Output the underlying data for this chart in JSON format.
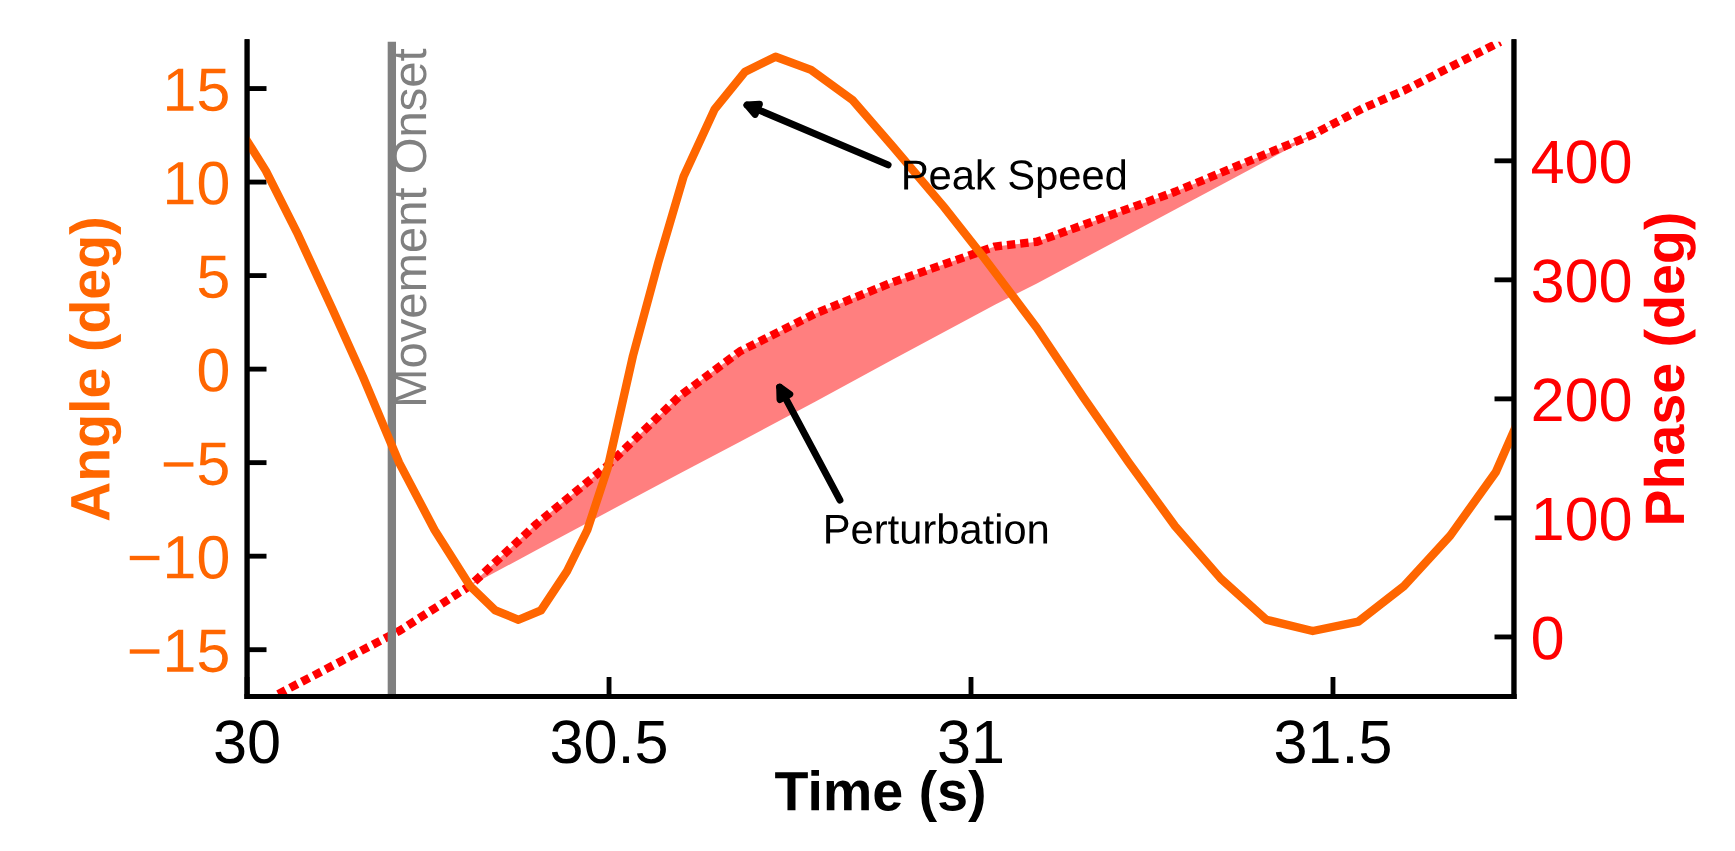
{
  "chart_data": {
    "type": "line",
    "xlabel": "Time (s)",
    "ylabel": "Angle (deg)",
    "y2label": "Phase (deg)",
    "xlim": [
      30,
      31.75
    ],
    "xticks": [
      30,
      30.5,
      31,
      31.5
    ],
    "ylim": [
      -17.5,
      17.5
    ],
    "yticks": [
      -15,
      -10,
      -5,
      0,
      5,
      10,
      15
    ],
    "y2lim": [
      -50,
      500
    ],
    "y2ticks": [
      0,
      100,
      200,
      300,
      400
    ],
    "grid": false,
    "legend": false,
    "series": [
      {
        "color": "#ff6600",
        "line_style": "solid",
        "x": [
          30.0,
          30.026,
          30.069,
          30.118,
          30.16,
          30.21,
          30.259,
          30.308,
          30.343,
          30.375,
          30.406,
          30.442,
          30.47,
          30.498,
          30.533,
          30.568,
          30.603,
          30.646,
          30.688,
          30.73,
          30.779,
          30.836,
          30.892,
          30.962,
          31.015,
          31.091,
          31.155,
          31.218,
          31.282,
          31.345,
          31.408,
          31.472,
          31.535,
          31.598,
          31.662,
          31.725,
          31.75
        ],
        "values": [
          12.2,
          10.6,
          7.3,
          3.2,
          -0.4,
          -5.0,
          -8.6,
          -11.6,
          -12.9,
          -13.4,
          -12.9,
          -10.8,
          -8.6,
          -5.3,
          0.7,
          5.7,
          10.3,
          13.9,
          15.9,
          16.7,
          16.0,
          14.4,
          11.9,
          8.7,
          6.1,
          2.2,
          -1.5,
          -5.0,
          -8.4,
          -11.2,
          -13.4,
          -14.0,
          -13.5,
          -11.6,
          -8.9,
          -5.5,
          -3.3
        ]
      },
      {
        "color": "#ff0000",
        "axis": "y2",
        "line_style": "dotted",
        "x": [
          30.043,
          30.21,
          30.308,
          30.4,
          30.498,
          30.597,
          30.681,
          30.786,
          30.892,
          31.033,
          31.091,
          31.282,
          31.472,
          31.541,
          31.598,
          31.731
        ],
        "values": [
          -48,
          5,
          43,
          95,
          144,
          202,
          240,
          272,
          298,
          328,
          332,
          374,
          422,
          444,
          459,
          500
        ],
        "lower": [
          null,
          null,
          43,
          73,
          105,
          137,
          164,
          198,
          233,
          279,
          297,
          359,
          421,
          444,
          null,
          null
        ],
        "upper": [
          null,
          null,
          43,
          95,
          144,
          202,
          240,
          272,
          298,
          328,
          332,
          374,
          422,
          444,
          null,
          null
        ]
      }
    ],
    "ref_lines": [
      {
        "axis": "x",
        "value": 30.2,
        "label": "Movement Onset",
        "color": "#808080",
        "line_style": "solid"
      }
    ],
    "annotations": [
      "Peak Speed",
      "Perturbation"
    ]
  }
}
